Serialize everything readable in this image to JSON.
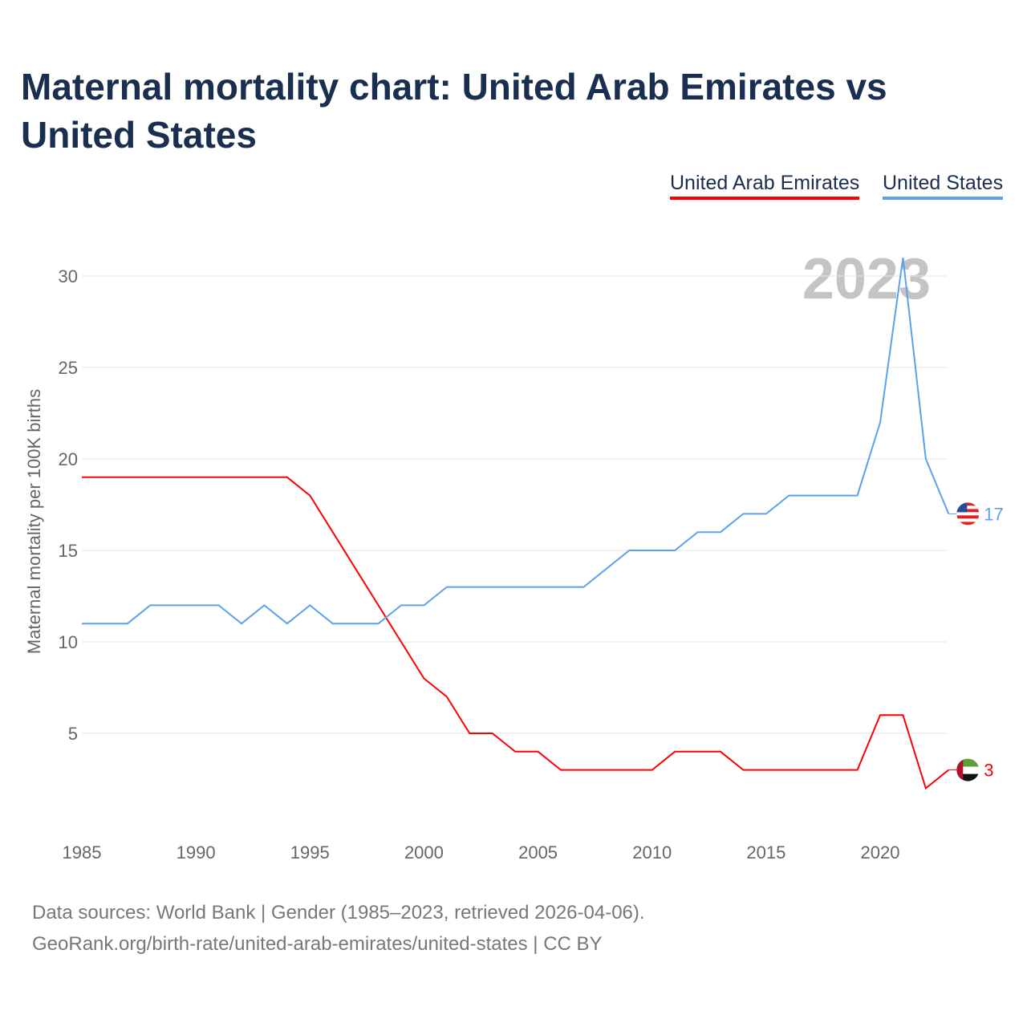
{
  "title": "Maternal mortality chart: United Arab Emirates vs United States",
  "year_label": "2023",
  "footer": {
    "line1": "Data sources: World Bank | Gender (1985–2023, retrieved 2026-04-06).",
    "line2": "GeoRank.org/birth-rate/united-arab-emirates/united-states | CC BY"
  },
  "chart_data": {
    "type": "line",
    "title": "Maternal mortality chart: United Arab Emirates vs United States",
    "xlabel": "",
    "ylabel": "Maternal mortality per 100K births",
    "xlim": [
      1985,
      2023
    ],
    "ylim": [
      0,
      31
    ],
    "x_ticks": [
      "1985",
      "1990",
      "1995",
      "2000",
      "2005",
      "2010",
      "2015",
      "2020"
    ],
    "y_ticks": [
      "5",
      "10",
      "15",
      "20",
      "25",
      "30"
    ],
    "legend_position": "top-right",
    "x": [
      1985,
      1986,
      1987,
      1988,
      1989,
      1990,
      1991,
      1992,
      1993,
      1994,
      1995,
      1996,
      1997,
      1998,
      1999,
      2000,
      2001,
      2002,
      2003,
      2004,
      2005,
      2006,
      2007,
      2008,
      2009,
      2010,
      2011,
      2012,
      2013,
      2014,
      2015,
      2016,
      2017,
      2018,
      2019,
      2020,
      2021,
      2022,
      2023
    ],
    "series": [
      {
        "name": "United Arab Emirates",
        "color": "#ff0000",
        "end_label": "3",
        "values": [
          19,
          19,
          19,
          19,
          19,
          19,
          19,
          19,
          19,
          19,
          18,
          16,
          14,
          12,
          10,
          8,
          7,
          5,
          5,
          4,
          4,
          3,
          3,
          3,
          3,
          3,
          4,
          4,
          4,
          3,
          3,
          3,
          3,
          3,
          3,
          6,
          6,
          2,
          3
        ]
      },
      {
        "name": "United States",
        "color": "#5aa2ea",
        "end_label": "17",
        "values": [
          11,
          11,
          11,
          12,
          12,
          12,
          12,
          11,
          12,
          11,
          12,
          11,
          11,
          11,
          12,
          12,
          13,
          13,
          13,
          13,
          13,
          13,
          13,
          14,
          15,
          15,
          15,
          16,
          16,
          17,
          17,
          18,
          18,
          18,
          18,
          22,
          31,
          20,
          17
        ]
      }
    ]
  }
}
